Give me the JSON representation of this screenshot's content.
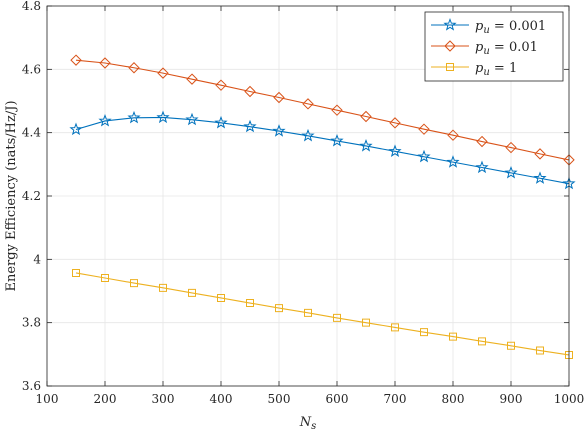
{
  "chart_data": {
    "type": "line",
    "xlabel": "N",
    "xlabel_sub": "s",
    "ylabel": "Energy Efficiency (nats/Hz/J)",
    "xlim": [
      100,
      1000
    ],
    "ylim": [
      3.6,
      4.8
    ],
    "xticks": [
      100,
      200,
      300,
      400,
      500,
      600,
      700,
      800,
      900,
      1000
    ],
    "yticks": [
      3.6,
      3.8,
      4,
      4.2,
      4.4,
      4.6,
      4.8
    ],
    "xtick_labels": [
      "100",
      "200",
      "300",
      "400",
      "500",
      "600",
      "700",
      "800",
      "900",
      "1000"
    ],
    "ytick_labels": [
      "3.6",
      "3.8",
      "4",
      "4.2",
      "4.4",
      "4.6",
      "4.8"
    ],
    "grid": true,
    "legend_position": "top-right",
    "x": [
      150,
      200,
      250,
      300,
      350,
      400,
      450,
      500,
      550,
      600,
      650,
      700,
      750,
      800,
      850,
      900,
      950,
      1000
    ],
    "series": [
      {
        "name": "p_u = 0.001",
        "legend_main": "p",
        "legend_sub": "u",
        "legend_value": " = 0.001",
        "color": "#0072BD",
        "marker": "star",
        "values": [
          4.41,
          4.437,
          4.447,
          4.448,
          4.441,
          4.431,
          4.419,
          4.405,
          4.39,
          4.374,
          4.358,
          4.341,
          4.324,
          4.307,
          4.29,
          4.273,
          4.256,
          4.239
        ]
      },
      {
        "name": "p_u = 0.01",
        "legend_main": "p",
        "legend_sub": "u",
        "legend_value": " = 0.01",
        "color": "#D95319",
        "marker": "diamond",
        "values": [
          4.629,
          4.62,
          4.605,
          4.588,
          4.569,
          4.55,
          4.53,
          4.511,
          4.491,
          4.471,
          4.451,
          4.431,
          4.411,
          4.392,
          4.372,
          4.353,
          4.333,
          4.314
        ]
      },
      {
        "name": "p_u = 1",
        "legend_main": "p",
        "legend_sub": "u",
        "legend_value": " = 1",
        "color": "#EDB120",
        "marker": "square",
        "values": [
          3.957,
          3.941,
          3.925,
          3.91,
          3.894,
          3.878,
          3.862,
          3.846,
          3.831,
          3.815,
          3.8,
          3.785,
          3.77,
          3.756,
          3.741,
          3.727,
          3.712,
          3.698
        ]
      }
    ]
  }
}
